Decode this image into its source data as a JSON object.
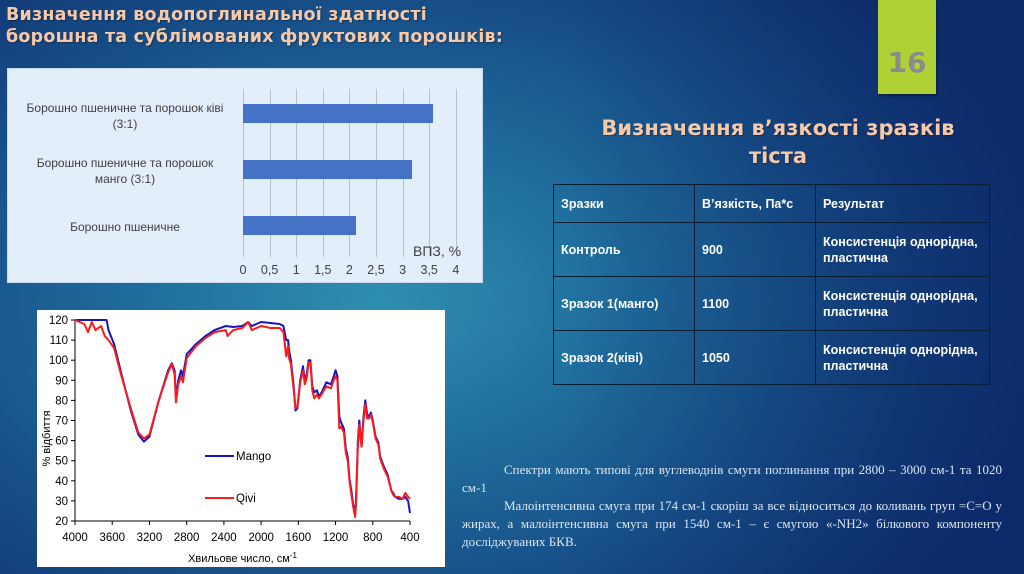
{
  "slide": {
    "number": "16",
    "title_left_line1": "Визначення водопоглинальної здатності",
    "title_left_line2": "борошна та сублімованих фруктових порошків:",
    "title_right_line1": "Визначення в’язкості зразків",
    "title_right_line2": "тіста",
    "colors": {
      "title": "#f7c9a8",
      "slide_number_box": "#aed236",
      "slide_number_text": "#8b8b8b",
      "bar": "#4472c4",
      "mango_line": "#1515c8",
      "qivi_line": "#ff1a1a"
    }
  },
  "bar_chart": {
    "labels": [
      {
        "line1": "Борошно пшеничне та порошок ківі",
        "line2": "(3:1)"
      },
      {
        "line1": "Борошно пшеничне та порошок",
        "line2": "манго (3:1)"
      },
      {
        "line1": "Борошно пшеничне",
        "line2": ""
      }
    ],
    "ticks": [
      "0",
      "0,5",
      "1",
      "1,5",
      "2",
      "2,5",
      "3",
      "3,5",
      "4"
    ],
    "axis_title": "ВПЗ, %"
  },
  "table": {
    "headers": [
      "Зразки",
      "В’язкість, Па*с",
      "Результат"
    ],
    "rows": [
      {
        "sample": "Контроль",
        "viscosity": "900",
        "result": "Консистенція однорідна, пластична"
      },
      {
        "sample": "Зразок 1(манго)",
        "viscosity": "1100",
        "result": "Консистенція однорідна, пластична"
      },
      {
        "sample": "Зразок 2(ківі)",
        "viscosity": "1050",
        "result": "Консистенція однорідна, пластична"
      }
    ]
  },
  "description": {
    "paragraph1": "Спектри мають типові для вуглеводнів смуги поглинання при 2800 – 3000 см-1 та 1020 см-1",
    "paragraph2": "Малоінтенсивна смуга при 174 см-1 скоріш за все відноситься до коливань груп =С=О у жирах, а малоінтенсивна смуга при 1540 см-1 – є смугою «-NH2» білкового компоненту досліджуваних БКВ."
  },
  "chart_data": [
    {
      "type": "bar",
      "orientation": "horizontal",
      "title": "",
      "categories": [
        "Борошно пшеничне та порошок ківі (3:1)",
        "Борошно пшеничне та порошок манго (3:1)",
        "Борошно пшеничне"
      ],
      "values": [
        3.58,
        3.17,
        2.13
      ],
      "xlabel": "ВПЗ, %",
      "ylabel": "",
      "xlim": [
        0,
        4
      ],
      "xticks": [
        "0",
        "0,5",
        "1",
        "1,5",
        "2",
        "2,5",
        "3",
        "3,5",
        "4"
      ],
      "grid": true,
      "legend": null
    },
    {
      "type": "line",
      "title": "",
      "xlabel": "Хвильове число, см-1",
      "ylabel": "% відбиття",
      "xlim": [
        4000,
        400
      ],
      "ylim": [
        20,
        120
      ],
      "xticks": [
        4000,
        3600,
        3200,
        2800,
        2400,
        2000,
        1600,
        1200,
        800,
        400
      ],
      "yticks": [
        20,
        30,
        40,
        50,
        60,
        70,
        80,
        90,
        100,
        110,
        120
      ],
      "grid": false,
      "legend_position": "inside-center",
      "series": [
        {
          "name": "Mango",
          "color": "#1515c8",
          "points": [
            [
              4000,
              120
            ],
            [
              3800,
              120
            ],
            [
              3660,
              120
            ],
            [
              3640,
              115
            ],
            [
              3580,
              108
            ],
            [
              3500,
              93
            ],
            [
              3400,
              75
            ],
            [
              3320,
              63
            ],
            [
              3260,
              59.5
            ],
            [
              3200,
              62
            ],
            [
              3100,
              80
            ],
            [
              3000,
              95
            ],
            [
              2960,
              98.5
            ],
            [
              2930,
              95
            ],
            [
              2915,
              81
            ],
            [
              2890,
              90
            ],
            [
              2860,
              95
            ],
            [
              2840,
              92
            ],
            [
              2800,
              103
            ],
            [
              2700,
              108
            ],
            [
              2600,
              112
            ],
            [
              2500,
              115
            ],
            [
              2380,
              117
            ],
            [
              2300,
              116.5
            ],
            [
              2200,
              117
            ],
            [
              2140,
              119
            ],
            [
              2100,
              117
            ],
            [
              2000,
              119
            ],
            [
              1900,
              118.5
            ],
            [
              1800,
              118
            ],
            [
              1760,
              117
            ],
            [
              1730,
              110
            ],
            [
              1710,
              110
            ],
            [
              1700,
              105
            ],
            [
              1680,
              100
            ],
            [
              1650,
              87
            ],
            [
              1630,
              75
            ],
            [
              1610,
              76
            ],
            [
              1580,
              90
            ],
            [
              1550,
              97
            ],
            [
              1530,
              90
            ],
            [
              1510,
              93
            ],
            [
              1490,
              100
            ],
            [
              1470,
              100
            ],
            [
              1450,
              87
            ],
            [
              1430,
              84
            ],
            [
              1400,
              85
            ],
            [
              1380,
              82
            ],
            [
              1350,
              84
            ],
            [
              1300,
              89
            ],
            [
              1250,
              88
            ],
            [
              1220,
              92
            ],
            [
              1200,
              95
            ],
            [
              1180,
              92
            ],
            [
              1160,
              72
            ],
            [
              1140,
              69
            ],
            [
              1110,
              66
            ],
            [
              1090,
              56
            ],
            [
              1070,
              52
            ],
            [
              1050,
              41
            ],
            [
              1030,
              35
            ],
            [
              1010,
              28
            ],
            [
              990,
              25
            ],
            [
              980,
              30
            ],
            [
              960,
              60
            ],
            [
              945,
              70
            ],
            [
              930,
              62
            ],
            [
              920,
              57
            ],
            [
              900,
              72
            ],
            [
              880,
              80
            ],
            [
              860,
              73
            ],
            [
              840,
              72
            ],
            [
              820,
              74
            ],
            [
              800,
              70
            ],
            [
              770,
              62
            ],
            [
              740,
              59
            ],
            [
              720,
              52
            ],
            [
              680,
              47
            ],
            [
              640,
              43
            ],
            [
              600,
              35
            ],
            [
              580,
              34
            ],
            [
              560,
              32
            ],
            [
              520,
              31
            ],
            [
              480,
              31
            ],
            [
              450,
              32
            ],
            [
              420,
              30
            ],
            [
              400,
              24
            ]
          ]
        },
        {
          "name": "Qivi",
          "color": "#ff1a1a",
          "points": [
            [
              4000,
              120
            ],
            [
              3900,
              118
            ],
            [
              3860,
              114
            ],
            [
              3820,
              119
            ],
            [
              3780,
              115
            ],
            [
              3720,
              117
            ],
            [
              3680,
              112
            ],
            [
              3640,
              110
            ],
            [
              3580,
              106
            ],
            [
              3500,
              92
            ],
            [
              3400,
              76
            ],
            [
              3320,
              64
            ],
            [
              3260,
              61
            ],
            [
              3200,
              63
            ],
            [
              3100,
              80
            ],
            [
              3000,
              94
            ],
            [
              2960,
              98
            ],
            [
              2930,
              93
            ],
            [
              2915,
              79
            ],
            [
              2890,
              88
            ],
            [
              2860,
              92
            ],
            [
              2840,
              89
            ],
            [
              2800,
              101
            ],
            [
              2700,
              107
            ],
            [
              2600,
              111
            ],
            [
              2500,
              114
            ],
            [
              2380,
              115
            ],
            [
              2360,
              112
            ],
            [
              2300,
              115
            ],
            [
              2200,
              116
            ],
            [
              2140,
              119
            ],
            [
              2100,
              115
            ],
            [
              2000,
              117
            ],
            [
              1900,
              116
            ],
            [
              1800,
              116
            ],
            [
              1760,
              114
            ],
            [
              1730,
              102
            ],
            [
              1710,
              107
            ],
            [
              1700,
              101
            ],
            [
              1680,
              98
            ],
            [
              1650,
              85
            ],
            [
              1630,
              76
            ],
            [
              1610,
              77
            ],
            [
              1580,
              89
            ],
            [
              1550,
              95
            ],
            [
              1530,
              88
            ],
            [
              1510,
              91
            ],
            [
              1490,
              99
            ],
            [
              1470,
              99
            ],
            [
              1450,
              85
            ],
            [
              1430,
              81
            ],
            [
              1400,
              83
            ],
            [
              1380,
              81
            ],
            [
              1350,
              83
            ],
            [
              1300,
              87
            ],
            [
              1250,
              86
            ],
            [
              1220,
              90
            ],
            [
              1200,
              92
            ],
            [
              1180,
              90
            ],
            [
              1160,
              66
            ],
            [
              1140,
              67
            ],
            [
              1110,
              64
            ],
            [
              1090,
              54
            ],
            [
              1070,
              50
            ],
            [
              1050,
              40
            ],
            [
              1030,
              33
            ],
            [
              1010,
              27
            ],
            [
              990,
              22
            ],
            [
              980,
              28
            ],
            [
              960,
              58
            ],
            [
              945,
              68
            ],
            [
              930,
              60
            ],
            [
              920,
              57
            ],
            [
              900,
              70
            ],
            [
              880,
              78
            ],
            [
              860,
              71
            ],
            [
              840,
              71
            ],
            [
              820,
              73
            ],
            [
              800,
              69
            ],
            [
              770,
              61
            ],
            [
              740,
              58
            ],
            [
              720,
              51
            ],
            [
              680,
              46
            ],
            [
              640,
              42
            ],
            [
              600,
              35
            ],
            [
              580,
              33
            ],
            [
              560,
              32
            ],
            [
              520,
              32
            ],
            [
              480,
              31
            ],
            [
              450,
              34
            ],
            [
              420,
              32
            ],
            [
              400,
              31
            ]
          ]
        }
      ]
    }
  ],
  "spectrum": {
    "legend": [
      "Mango",
      "Qivi"
    ],
    "ylabel": "% відбиття",
    "xlabel": "Хвильове число, см",
    "xlabel_sup": "-1",
    "yticks": [
      "120",
      "110",
      "100",
      "90",
      "80",
      "70",
      "60",
      "50",
      "40",
      "30",
      "20"
    ],
    "xticks": [
      "4000",
      "3600",
      "3200",
      "2800",
      "2400",
      "2000",
      "1600",
      "1200",
      "800",
      "400"
    ]
  }
}
